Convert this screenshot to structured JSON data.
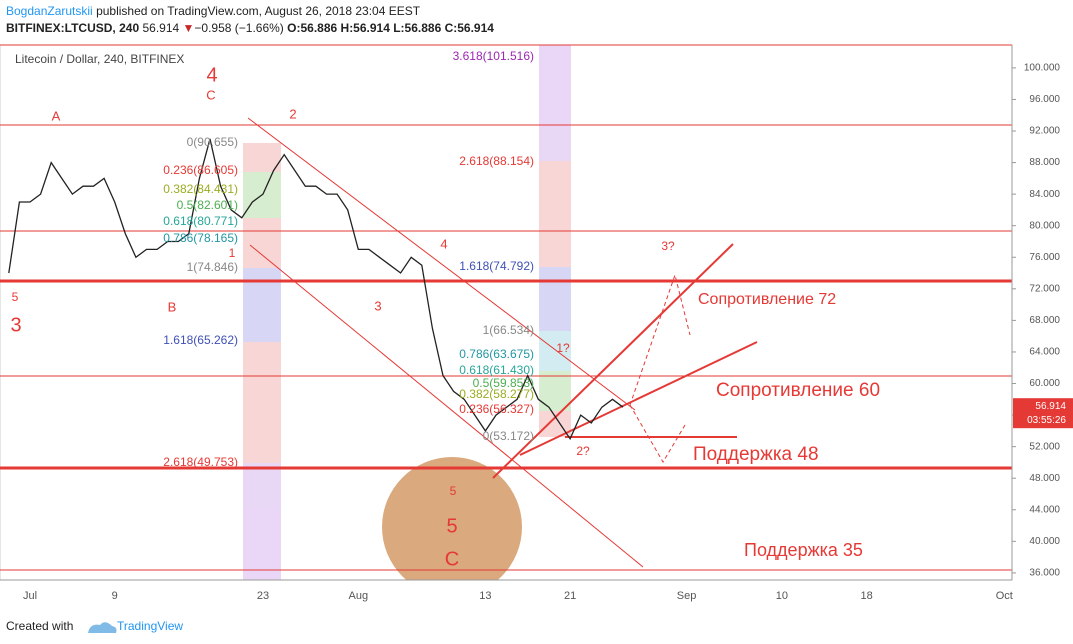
{
  "header": {
    "author": "BogdanZarutskii",
    "published": "published on TradingView.com, August 26, 2018 23:04 EEST",
    "symbol": "BITFINEX:LTCUSD, 240",
    "last": "56.914",
    "arrow": "▼",
    "change": "−0.958 (−1.66%)",
    "ohlc": "O:56.886 H:56.914 L:56.886 C:56.914"
  },
  "chart_data": {
    "type": "line",
    "title": "Litecoin / Dollar, 240, BITFINEX",
    "color": "#222222",
    "categories": [
      null,
      null,
      "Jul",
      null,
      null,
      null,
      null,
      null,
      null,
      null,
      "9",
      null,
      null,
      null,
      null,
      null,
      null,
      null,
      null,
      null,
      null,
      null,
      null,
      null,
      "23",
      null,
      null,
      null,
      null,
      null,
      null,
      null,
      null,
      "Aug",
      null,
      null,
      null,
      null,
      null,
      null,
      null,
      null,
      null,
      null,
      null,
      "13",
      null,
      null,
      null,
      null,
      null,
      null,
      null,
      "21",
      null,
      null,
      null,
      null,
      null,
      null,
      null,
      null,
      null,
      null,
      "Sep",
      null,
      null,
      null,
      null,
      null,
      null,
      null,
      null,
      "10",
      null,
      null,
      null,
      null,
      null,
      null,
      null,
      "18",
      null,
      null,
      null,
      null,
      null,
      null,
      null,
      null,
      null,
      null,
      null,
      null,
      "Oct"
    ],
    "values": [
      74,
      83,
      83,
      84,
      88,
      86,
      84,
      85,
      85,
      86,
      83,
      79,
      76,
      77,
      77,
      78,
      78,
      79,
      86,
      91,
      85,
      82,
      81,
      83,
      84,
      87,
      89,
      87,
      85,
      85,
      84,
      84,
      82,
      77,
      77,
      76,
      75,
      74,
      76,
      75,
      67,
      61,
      59,
      58,
      56,
      54,
      56,
      57,
      58,
      61,
      58,
      57,
      55,
      53,
      56,
      55,
      57,
      58,
      57,
      null,
      null,
      null,
      null,
      null,
      null,
      null,
      null,
      null,
      null,
      null,
      null,
      null,
      null,
      null,
      null,
      null,
      null,
      null,
      null,
      null,
      null,
      null,
      null,
      null,
      null,
      null,
      null,
      null,
      null,
      null,
      null,
      null,
      null,
      null,
      null
    ],
    "ylim": [
      35.1,
      102.9
    ],
    "yticks": [
      {
        "value": 36,
        "label": "36.000"
      },
      {
        "value": 40,
        "label": "40.000"
      },
      {
        "value": 44,
        "label": "44.000"
      },
      {
        "value": 48,
        "label": "48.000"
      },
      {
        "value": 52,
        "label": "52.000"
      },
      {
        "value": 56,
        "label": "56.000"
      },
      {
        "value": 60,
        "label": "60.000"
      },
      {
        "value": 64,
        "label": "64.000"
      },
      {
        "value": 68,
        "label": "68.000"
      },
      {
        "value": 72,
        "label": "72.000"
      },
      {
        "value": 76,
        "label": "76.000"
      },
      {
        "value": 80,
        "label": "80.000"
      },
      {
        "value": 84,
        "label": "84.000"
      },
      {
        "value": 88,
        "label": "88.000"
      },
      {
        "value": 92,
        "label": "92.000"
      },
      {
        "value": 96,
        "label": "96.000"
      },
      {
        "value": 100,
        "label": "100.000"
      }
    ],
    "grid": false,
    "price_label": "56.914",
    "countdown": "03:55:26",
    "annotations": [
      "4",
      "C",
      "A",
      "2",
      "5",
      "3",
      "B",
      "1",
      "4",
      "3",
      "1?",
      "2?",
      "3?",
      "5",
      "5",
      "C",
      "0(90.655)",
      "0.236(86.605)",
      "0.382(84.431)",
      "0.5(82.601)",
      "0.618(80.771)",
      "0.786(78.165)",
      "1(74.846)",
      "1.618(65.262)",
      "2.618(49.753)",
      "3.618(101.516)",
      "2.618(88.154)",
      "1.618(74.792)",
      "1(66.534)",
      "0.786(63.675)",
      "0.618(61.430)",
      "0.5(59.853)",
      "0.382(58.277)",
      "0.236(56.327)",
      "0(53.172)",
      "Сопротивление 72",
      "Сопротивление 60",
      "Поддержка 48",
      "Поддержка 35"
    ]
  },
  "footer": {
    "created": "Created with",
    "brand": "TradingView"
  }
}
